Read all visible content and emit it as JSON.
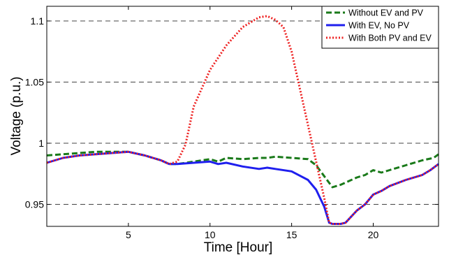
{
  "chart_data": {
    "type": "line",
    "title": "",
    "xlabel": "Time [Hour]",
    "ylabel": "Voltage (p.u.)",
    "xlim": [
      0,
      24
    ],
    "ylim": [
      0.932,
      1.112
    ],
    "xticks": [
      5,
      10,
      15,
      20
    ],
    "xtick_labels": [
      "5",
      "10",
      "15",
      "20"
    ],
    "yticks": [
      0.95,
      1.0,
      1.05,
      1.1
    ],
    "ytick_labels": [
      "0.95",
      "1",
      "1.05",
      "1.1"
    ],
    "grid": "horizontal dashed at y ticks",
    "legend_position": "top-right",
    "series": [
      {
        "name": "Without EV and PV",
        "color": "#1a7a1a",
        "style": "dashed",
        "x": [
          0,
          1,
          2,
          3,
          4,
          5,
          6,
          7,
          7.5,
          8,
          9,
          10,
          10.5,
          11,
          12,
          13,
          13.5,
          14,
          15,
          16,
          16.5,
          17,
          17.5,
          18,
          18.5,
          19,
          19.5,
          20,
          20.5,
          21,
          22,
          23,
          23.7,
          24
        ],
        "y": [
          0.99,
          0.991,
          0.992,
          0.993,
          0.993,
          0.993,
          0.99,
          0.986,
          0.983,
          0.983,
          0.985,
          0.987,
          0.985,
          0.988,
          0.987,
          0.988,
          0.988,
          0.989,
          0.988,
          0.987,
          0.982,
          0.973,
          0.964,
          0.966,
          0.969,
          0.972,
          0.974,
          0.978,
          0.976,
          0.978,
          0.982,
          0.986,
          0.988,
          0.991
        ]
      },
      {
        "name": "With EV, No PV",
        "color": "#1f1fee",
        "style": "solid",
        "x": [
          0,
          1,
          2,
          3,
          4,
          5,
          6,
          7,
          7.5,
          8,
          9,
          10,
          10.5,
          11,
          12,
          13,
          13.5,
          14,
          15,
          16,
          16.5,
          17,
          17.3,
          17.5,
          18,
          18.3,
          19,
          19.5,
          20,
          20.5,
          21,
          22,
          23,
          23.5,
          24
        ],
        "y": [
          0.984,
          0.988,
          0.99,
          0.991,
          0.992,
          0.993,
          0.99,
          0.986,
          0.983,
          0.983,
          0.984,
          0.985,
          0.983,
          0.984,
          0.981,
          0.979,
          0.98,
          0.979,
          0.977,
          0.97,
          0.962,
          0.948,
          0.935,
          0.934,
          0.934,
          0.935,
          0.945,
          0.95,
          0.958,
          0.961,
          0.965,
          0.97,
          0.974,
          0.978,
          0.983
        ]
      },
      {
        "name": "With Both PV and EV",
        "color": "#ee2222",
        "style": "dotted",
        "x": [
          0,
          1,
          2,
          3,
          4,
          5,
          6,
          7,
          7.5,
          8,
          8.5,
          9,
          10,
          11,
          12,
          13,
          13.5,
          14,
          14.5,
          15,
          15.5,
          16,
          16.5,
          17,
          17.3,
          17.5,
          18,
          18.3,
          19,
          19.5,
          20,
          20.5,
          21,
          22,
          23,
          23.5,
          24
        ],
        "y": [
          0.984,
          0.988,
          0.99,
          0.991,
          0.992,
          0.993,
          0.99,
          0.986,
          0.983,
          0.985,
          0.999,
          1.03,
          1.06,
          1.08,
          1.095,
          1.103,
          1.104,
          1.101,
          1.095,
          1.075,
          1.045,
          1.015,
          0.985,
          0.955,
          0.935,
          0.934,
          0.934,
          0.935,
          0.945,
          0.95,
          0.958,
          0.961,
          0.965,
          0.97,
          0.974,
          0.978,
          0.983
        ]
      }
    ]
  }
}
